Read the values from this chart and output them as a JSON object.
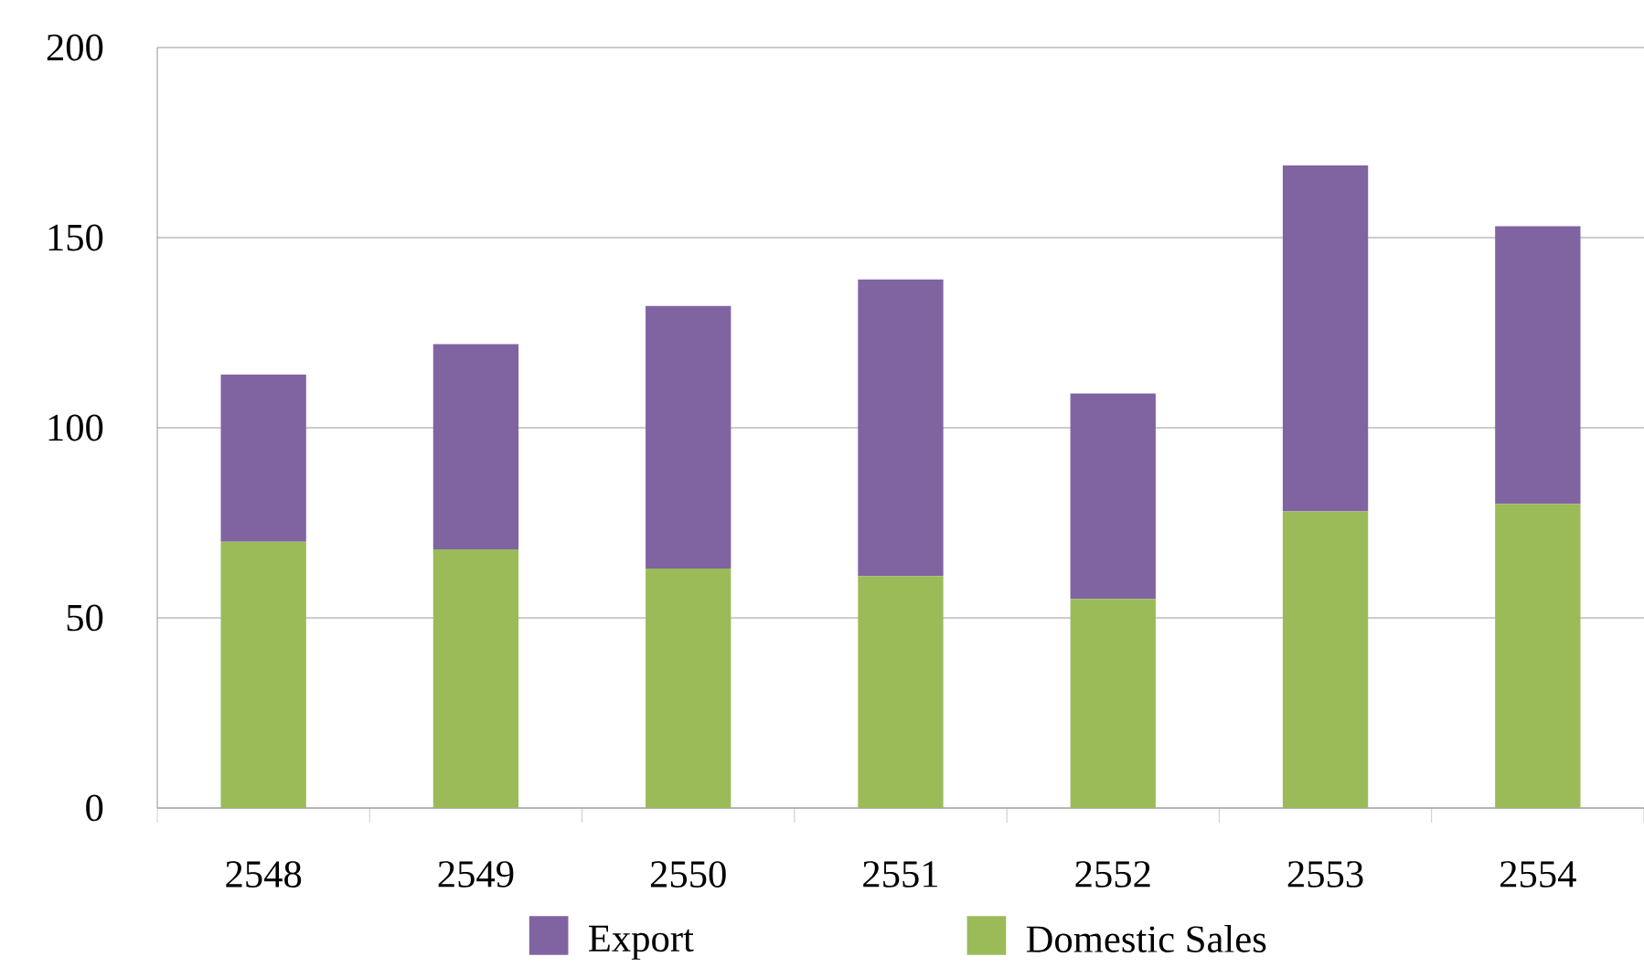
{
  "chart_data": {
    "type": "bar",
    "stacked": true,
    "categories": [
      "2548",
      "2549",
      "2550",
      "2551",
      "2552",
      "2553",
      "2554"
    ],
    "series": [
      {
        "name": "Domestic Sales",
        "color": "#9bbb59",
        "values": [
          70,
          68,
          63,
          61,
          55,
          78,
          80
        ]
      },
      {
        "name": "Export",
        "color": "#8064a2",
        "values": [
          44,
          54,
          69,
          78,
          54,
          91,
          73
        ]
      }
    ],
    "ylim": [
      0,
      200
    ],
    "yticks": [
      0,
      50,
      100,
      150,
      200
    ],
    "grid": "y",
    "legend": "bottom"
  }
}
